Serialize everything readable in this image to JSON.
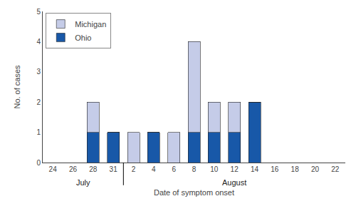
{
  "chart_data": {
    "type": "bar",
    "stacked": true,
    "categories": [
      "24",
      "26",
      "28",
      "31",
      "2",
      "4",
      "6",
      "8",
      "10",
      "12",
      "14",
      "16",
      "18",
      "20",
      "22"
    ],
    "series": [
      {
        "name": "Ohio",
        "color": "#1858a8",
        "values": [
          0,
          0,
          1,
          1,
          0,
          1,
          0,
          1,
          1,
          1,
          2,
          0,
          0,
          0,
          0
        ]
      },
      {
        "name": "Michigan",
        "color": "#c5cce8",
        "values": [
          0,
          0,
          1,
          0,
          1,
          0,
          1,
          3,
          1,
          1,
          0,
          0,
          0,
          0,
          0
        ]
      }
    ],
    "ylabel": "No. of cases",
    "xlabel": "Date of symptom onset",
    "annotations": [
      {
        "text": "July",
        "categories": [
          "24",
          "26",
          "28",
          "31"
        ]
      },
      {
        "text": "August",
        "categories": [
          "2",
          "4",
          "6",
          "8",
          "10",
          "12",
          "14",
          "16",
          "18",
          "20",
          "22"
        ]
      }
    ],
    "ylim": [
      0,
      5
    ],
    "yticks": [
      0,
      1,
      2,
      3,
      4,
      5
    ],
    "grid": false,
    "legend": "upper left"
  }
}
